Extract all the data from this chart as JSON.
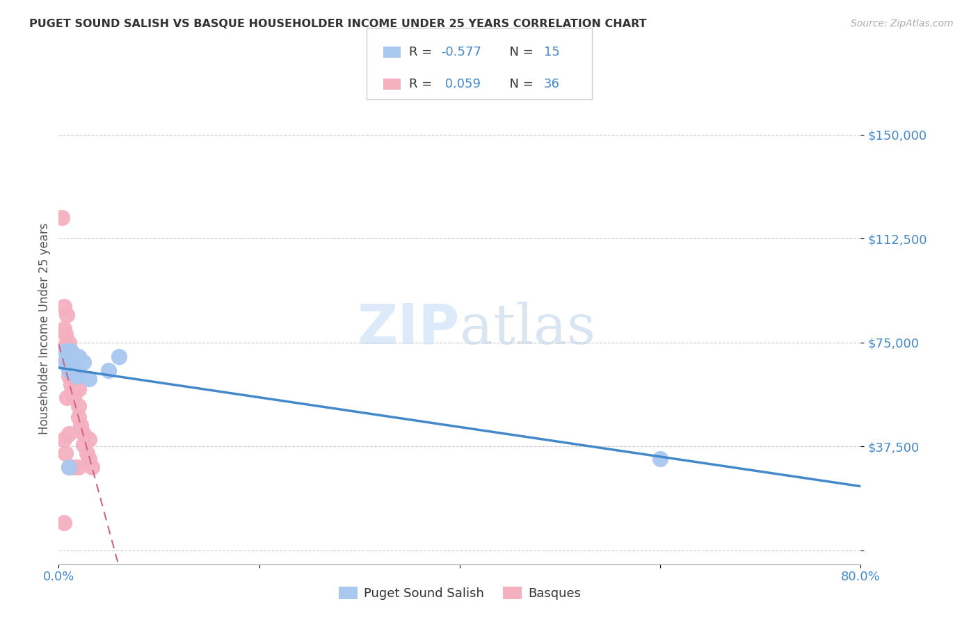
{
  "title": "PUGET SOUND SALISH VS BASQUE HOUSEHOLDER INCOME UNDER 25 YEARS CORRELATION CHART",
  "source": "Source: ZipAtlas.com",
  "ylabel": "Householder Income Under 25 years",
  "xlim": [
    0.0,
    0.8
  ],
  "ylim": [
    -5000,
    165000
  ],
  "yticks": [
    0,
    37500,
    75000,
    112500,
    150000
  ],
  "ytick_labels": [
    "",
    "$37,500",
    "$75,000",
    "$112,500",
    "$150,000"
  ],
  "group1_color": "#a8c8f0",
  "group2_color": "#f5b0c0",
  "line1_color": "#4488cc",
  "line2_color": "#cc6688",
  "watermark_zip": "ZIP",
  "watermark_atlas": "atlas",
  "puget_x": [
    0.005,
    0.007,
    0.01,
    0.01,
    0.012,
    0.013,
    0.015,
    0.018,
    0.02,
    0.025,
    0.03,
    0.05,
    0.06,
    0.6,
    0.01
  ],
  "puget_y": [
    68000,
    72000,
    70000,
    65000,
    72000,
    68000,
    65000,
    63000,
    70000,
    68000,
    62000,
    65000,
    70000,
    33000,
    30000
  ],
  "basque_x": [
    0.003,
    0.005,
    0.005,
    0.007,
    0.007,
    0.008,
    0.01,
    0.01,
    0.01,
    0.01,
    0.012,
    0.012,
    0.013,
    0.015,
    0.015,
    0.015,
    0.015,
    0.018,
    0.02,
    0.02,
    0.02,
    0.022,
    0.025,
    0.025,
    0.028,
    0.03,
    0.03,
    0.033,
    0.005,
    0.007,
    0.01,
    0.015,
    0.02,
    0.005,
    0.008,
    0.01
  ],
  "basque_y": [
    120000,
    88000,
    80000,
    78000,
    74000,
    85000,
    75000,
    72000,
    68000,
    63000,
    65000,
    60000,
    57000,
    65000,
    62000,
    58000,
    55000,
    62000,
    58000,
    52000,
    48000,
    45000,
    42000,
    38000,
    35000,
    40000,
    33000,
    30000,
    10000,
    35000,
    30000,
    30000,
    30000,
    40000,
    55000,
    42000
  ],
  "legend_R1": "-0.577",
  "legend_N1": "15",
  "legend_R2": "0.059",
  "legend_N2": "36"
}
